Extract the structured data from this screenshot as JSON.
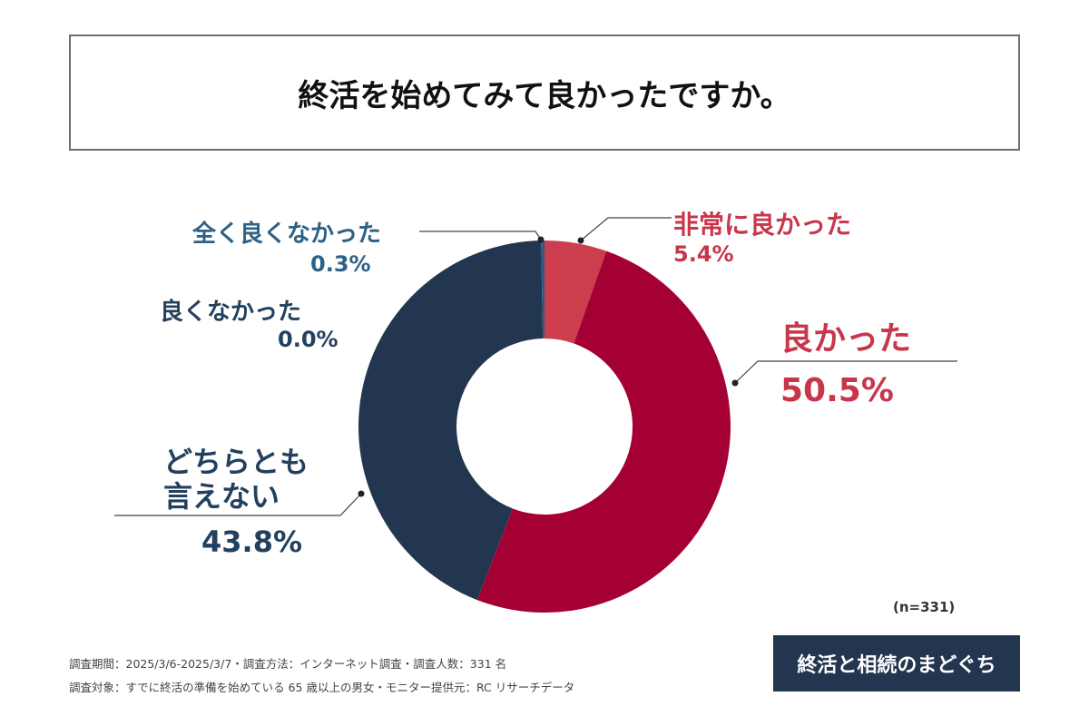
{
  "chart_data": {
    "type": "pie",
    "title": "終活を始めてみて良かったですか。",
    "donut": true,
    "slices": [
      {
        "label": "非常に良かった",
        "value": 5.4,
        "display": "5.4%",
        "color": "#cc3e4e"
      },
      {
        "label": "良かった",
        "value": 50.5,
        "display": "50.5%",
        "color": "#a50034"
      },
      {
        "label": "どちらとも言えない",
        "value": 43.8,
        "display": "43.8%",
        "color": "#23364f"
      },
      {
        "label": "良くなかった",
        "value": 0.0,
        "display": "0.0%",
        "color": "#23364f"
      },
      {
        "label": "全く良くなかった",
        "value": 0.3,
        "display": "0.3%",
        "color": "#2e5a82"
      }
    ],
    "sample": "(n=331)"
  },
  "label_lines": {
    "slice_2_line1": "どちらとも",
    "slice_2_line2": "言えない"
  },
  "footer": {
    "line1": "調査期間：2025/3/6-2025/3/7・調査方法：インターネット調査・調査人数：331 名",
    "line2": "調査対象：すでに終活の準備を始めている 65 歳以上の男女・モニター提供元：RC リサーチデータ"
  },
  "logo": "終活と相続のまどぐち"
}
